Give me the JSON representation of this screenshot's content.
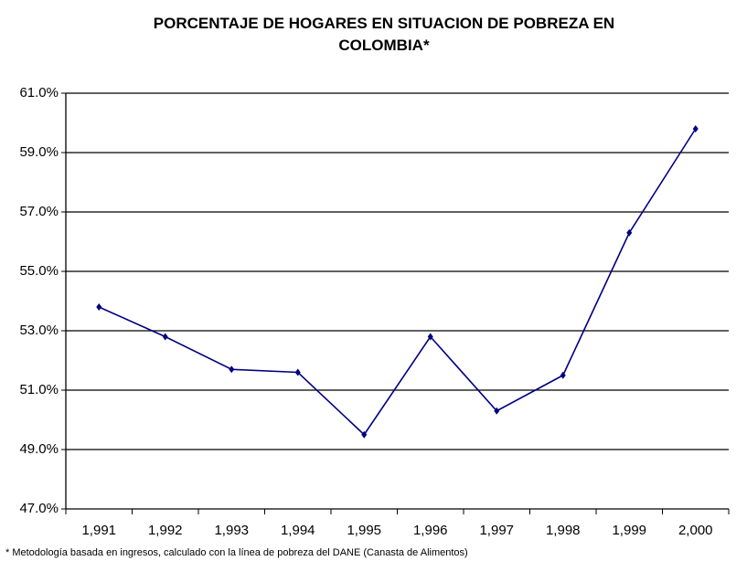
{
  "chart_data": {
    "type": "line",
    "title": "PORCENTAJE DE HOGARES EN SITUACION DE POBREZA EN COLOMBIA*",
    "footnote": "* Metodología basada en ingresos, calculado con la línea de pobreza del DANE (Canasta de Alimentos)",
    "categories": [
      "1,991",
      "1,992",
      "1,993",
      "1,994",
      "1,995",
      "1,996",
      "1,997",
      "1,998",
      "1,999",
      "2,000"
    ],
    "values": [
      53.8,
      52.8,
      51.7,
      51.6,
      49.5,
      52.8,
      50.3,
      51.5,
      56.3,
      59.8
    ],
    "color": "#000080",
    "ylim": [
      47,
      61
    ],
    "yticks": [
      {
        "value": 47,
        "label": "47.0%"
      },
      {
        "value": 49,
        "label": "49.0%"
      },
      {
        "value": 51,
        "label": "51.0%"
      },
      {
        "value": 53,
        "label": "53.0%"
      },
      {
        "value": 55,
        "label": "55.0%"
      },
      {
        "value": 57,
        "label": "57.0%"
      },
      {
        "value": 59,
        "label": "59.0%"
      },
      {
        "value": 61,
        "label": "61.0%"
      }
    ],
    "grid": true
  }
}
